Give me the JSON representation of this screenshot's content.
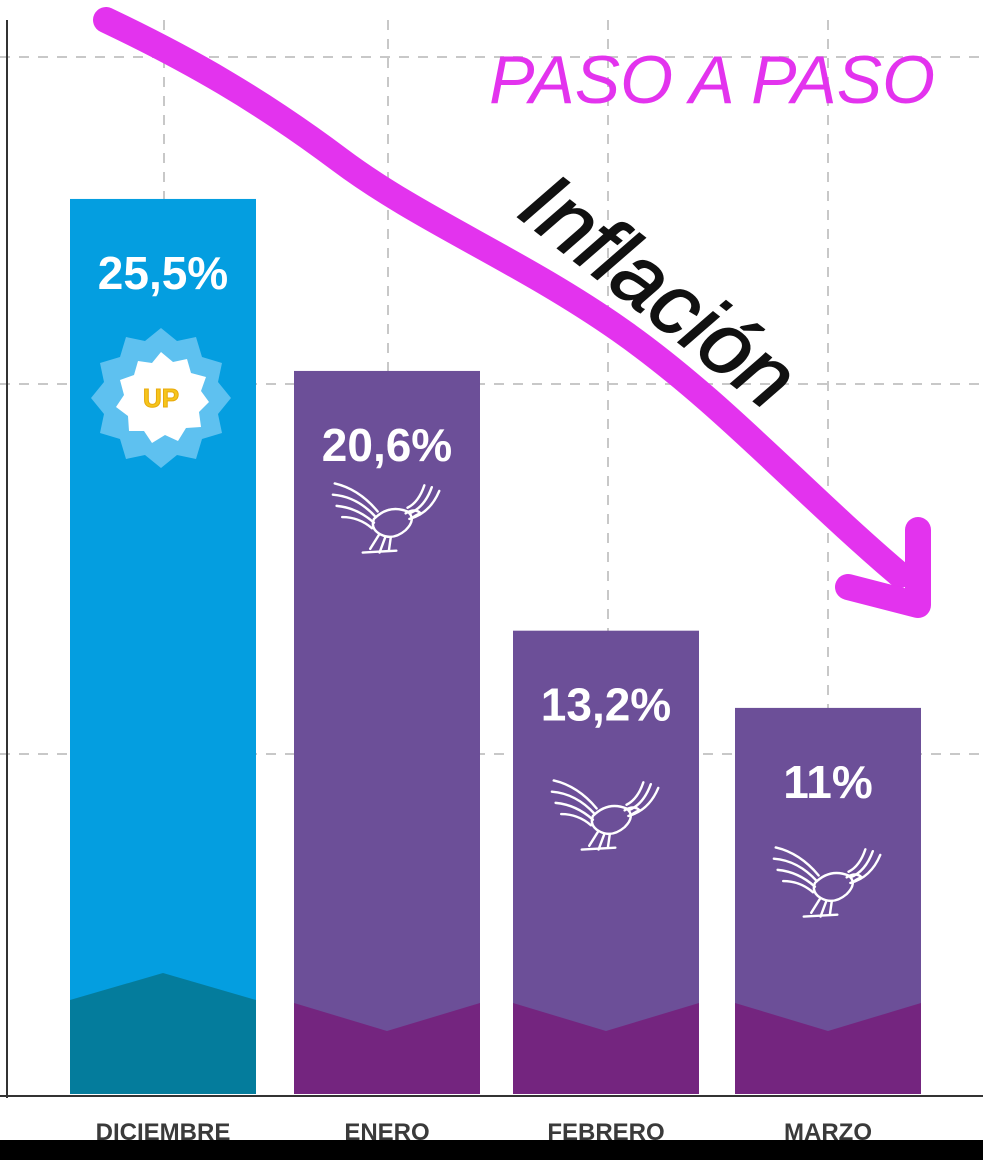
{
  "headline": "PASO A PASO",
  "annotation": "Inflación",
  "badge_text": "UP",
  "colors": {
    "background": "#ffffff",
    "blue_bar": "#049ee0",
    "blue_base": "#047c9c",
    "purple_bar": "#6c4f98",
    "purple_base": "#74257f",
    "magenta": "#e333ee",
    "badge_yellow": "#f5c51c",
    "label_text": "#3a3a3a"
  },
  "icons": [
    "up-badge-icon",
    "eagle-icon"
  ],
  "chart_data": {
    "type": "bar",
    "categories": [
      "DICIEMBRE",
      "ENERO",
      "FEBRERO",
      "MARZO"
    ],
    "values": [
      25.5,
      20.6,
      13.2,
      11
    ],
    "value_labels": [
      "25,5%",
      "20,6%",
      "13,2%",
      "11%"
    ],
    "ylim": [
      0,
      30
    ],
    "grid": true,
    "legend": "none"
  }
}
